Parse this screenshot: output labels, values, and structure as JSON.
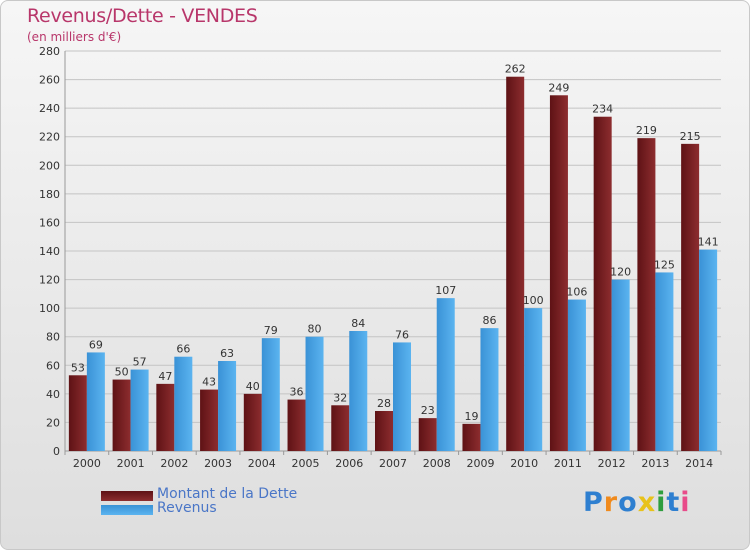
{
  "title": "Revenus/Dette - VENDES",
  "subtitle": "(en milliers d'€)",
  "colors": {
    "dette": "#7a1e20",
    "revenus": "#4aa6e6",
    "axis_text": "#333333",
    "title": "#b8366a",
    "legend_text": "#4a76c7"
  },
  "legend": [
    {
      "label": "Montant de la Dette",
      "series": "dette"
    },
    {
      "label": "Revenus",
      "series": "revenus"
    }
  ],
  "logo": {
    "text": "Proxiti"
  },
  "chart_data": {
    "type": "bar",
    "title": "Revenus/Dette - VENDES",
    "subtitle": "(en milliers d'€)",
    "categories": [
      "2000",
      "2001",
      "2002",
      "2003",
      "2004",
      "2005",
      "2006",
      "2007",
      "2008",
      "2009",
      "2010",
      "2011",
      "2012",
      "2013",
      "2014"
    ],
    "series": [
      {
        "name": "Montant de la Dette",
        "color": "#7a1e20",
        "values": [
          53,
          50,
          47,
          43,
          40,
          36,
          32,
          28,
          23,
          19,
          262,
          249,
          234,
          219,
          215
        ]
      },
      {
        "name": "Revenus",
        "color": "#4aa6e6",
        "values": [
          69,
          57,
          66,
          63,
          79,
          80,
          84,
          76,
          107,
          86,
          100,
          106,
          120,
          125,
          141
        ]
      }
    ],
    "ylim": [
      0,
      280
    ],
    "yticks": [
      0,
      20,
      40,
      60,
      80,
      100,
      120,
      140,
      160,
      180,
      200,
      220,
      240,
      260,
      280
    ],
    "grid": true,
    "legend_position": "bottom-left"
  }
}
